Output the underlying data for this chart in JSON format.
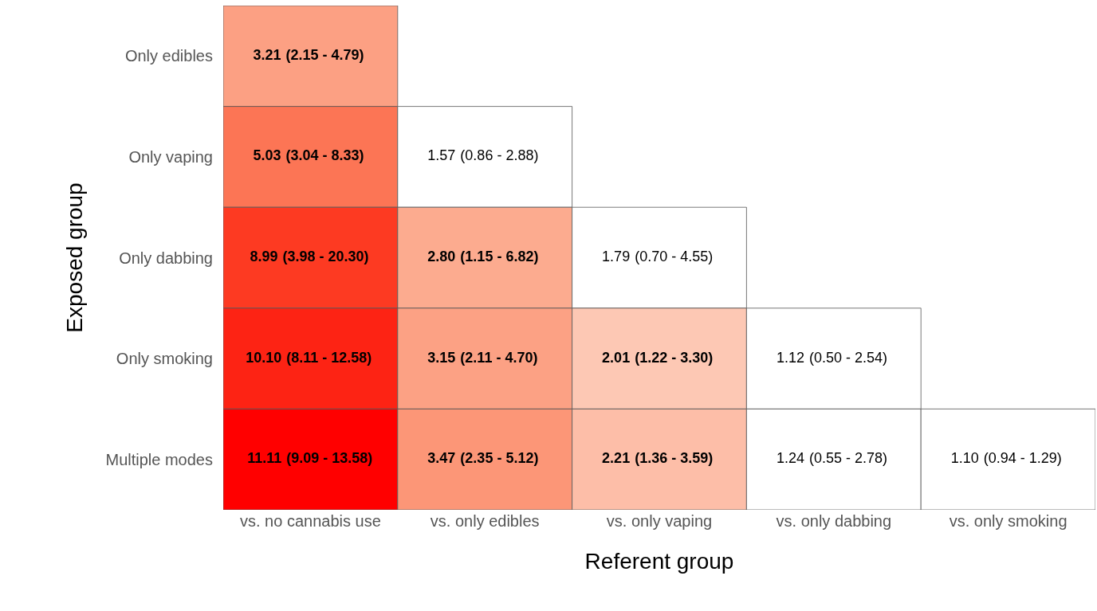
{
  "chart_data": {
    "type": "heatmap",
    "data_labels": true,
    "xlabel": "Referent group",
    "ylabel": "Exposed group",
    "categories": [
      "vs. no cannabis use",
      "vs. only edibles",
      "vs. only vaping",
      "vs. only dabbing",
      "vs. only smoking"
    ],
    "y_categories": [
      "Only edibles",
      "Only vaping",
      "Only dabbing",
      "Only smoking",
      "Multiple modes"
    ],
    "cells": [
      [
        3.21,
        null,
        null,
        null,
        null
      ],
      [
        5.03,
        1.57,
        null,
        null,
        null
      ],
      [
        8.99,
        2.8,
        1.79,
        null,
        null
      ],
      [
        10.1,
        3.15,
        2.01,
        1.12,
        null
      ],
      [
        11.11,
        3.47,
        2.21,
        1.24,
        1.1
      ]
    ],
    "cell_labels": [
      [
        "3.21",
        null,
        null,
        null,
        null
      ],
      [
        "5.03",
        "1.57",
        null,
        null,
        null
      ],
      [
        "8.99",
        "2.80",
        "1.79",
        null,
        null
      ],
      [
        "10.10",
        "3.15",
        "2.01",
        "1.12",
        null
      ],
      [
        "11.11",
        "3.47",
        "2.21",
        "1.24",
        "1.10"
      ]
    ],
    "annotations": [
      "(2.15 - 4.79)",
      "(3.04 - 8.33)",
      "(0.86 - 2.88)",
      "(3.98 - 20.30)",
      "(1.15 - 6.82)",
      "(0.70 - 4.55)",
      "(8.11 - 12.58)",
      "(2.11 - 4.70)",
      "(1.22 - 3.30)",
      "(0.50 - 2.54)",
      "(9.09 - 13.58)",
      "(2.35 - 5.12)",
      "(1.36 - 3.59)",
      "(0.55 - 2.78)",
      "(0.94 - 1.29)"
    ],
    "colors": [
      [
        "#fca083",
        null,
        null,
        null,
        null
      ],
      [
        "#fc7555",
        "#ffffff",
        null,
        null,
        null
      ],
      [
        "#fd3a22",
        "#fcab8f",
        "#ffffff",
        null,
        null
      ],
      [
        "#fd2314",
        "#fca184",
        "#fdc8b4",
        "#ffffff",
        null
      ],
      [
        "#ff0000",
        "#fc9677",
        "#fdbea8",
        "#ffffff",
        "#ffffff"
      ]
    ]
  }
}
